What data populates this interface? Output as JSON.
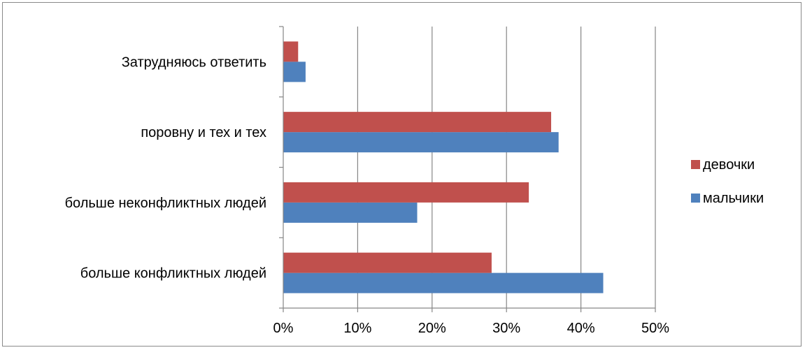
{
  "chart_data": {
    "type": "bar",
    "orientation": "horizontal",
    "categories": [
      "больше конфликтных людей",
      "больше неконфликтных людей",
      "поровну и тех и тех",
      "Затрудняюсь ответить"
    ],
    "series": [
      {
        "name": "мальчики",
        "color": "#4f81bd",
        "values": [
          43,
          18,
          37,
          3
        ]
      },
      {
        "name": "девочки",
        "color": "#c0504d",
        "values": [
          28,
          33,
          36,
          2
        ]
      }
    ],
    "xlim": [
      0,
      50
    ],
    "xticks": [
      "0%",
      "10%",
      "20%",
      "30%",
      "40%",
      "50%"
    ],
    "grid": true,
    "legend_position": "right",
    "legend_order": [
      "девочки",
      "мальчики"
    ],
    "gridline_color": "#868686"
  }
}
